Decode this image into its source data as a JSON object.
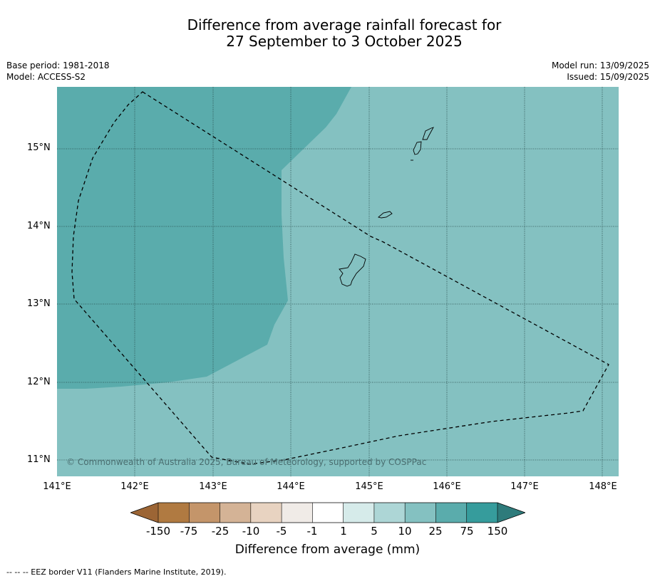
{
  "title": {
    "line1": "Difference from average rainfall forecast for",
    "line2": "27 September to 3 October 2025"
  },
  "meta": {
    "base_period": "Base period: 1981-2018",
    "model": "Model: ACCESS-S2",
    "model_run": "Model run: 13/09/2025",
    "issued": "Issued: 15/09/2025"
  },
  "axes": {
    "lat_labels": [
      "15°N",
      "14°N",
      "13°N",
      "12°N",
      "11°N"
    ],
    "lon_labels": [
      "141°E",
      "142°E",
      "143°E",
      "144°E",
      "145°E",
      "146°E",
      "147°E",
      "148°E"
    ]
  },
  "colorbar": {
    "colors": [
      "#9c6535",
      "#b07a41",
      "#c4956a",
      "#d4b396",
      "#e8d3c1",
      "#f0ebe7",
      "#ffffff",
      "#d6ebea",
      "#add6d6",
      "#84c1c1",
      "#5aacac",
      "#369c9c",
      "#2e7b7b"
    ],
    "ticks": [
      "-150",
      "-75",
      "-25",
      "-10",
      "-5",
      "-1",
      "1",
      "5",
      "10",
      "25",
      "75",
      "150"
    ],
    "label": "Difference from average (mm)"
  },
  "map": {
    "region_colors": {
      "category_10_to_25": "#84c1c1",
      "category_25_to_75": "#5aacac"
    }
  },
  "copyright": "© Commonwealth of Australia 2025, Bureau of Meteorology, supported by COSPPac",
  "footnote": "--  --  -- EEZ border V11 (Flanders Marine Institute, 2019)."
}
